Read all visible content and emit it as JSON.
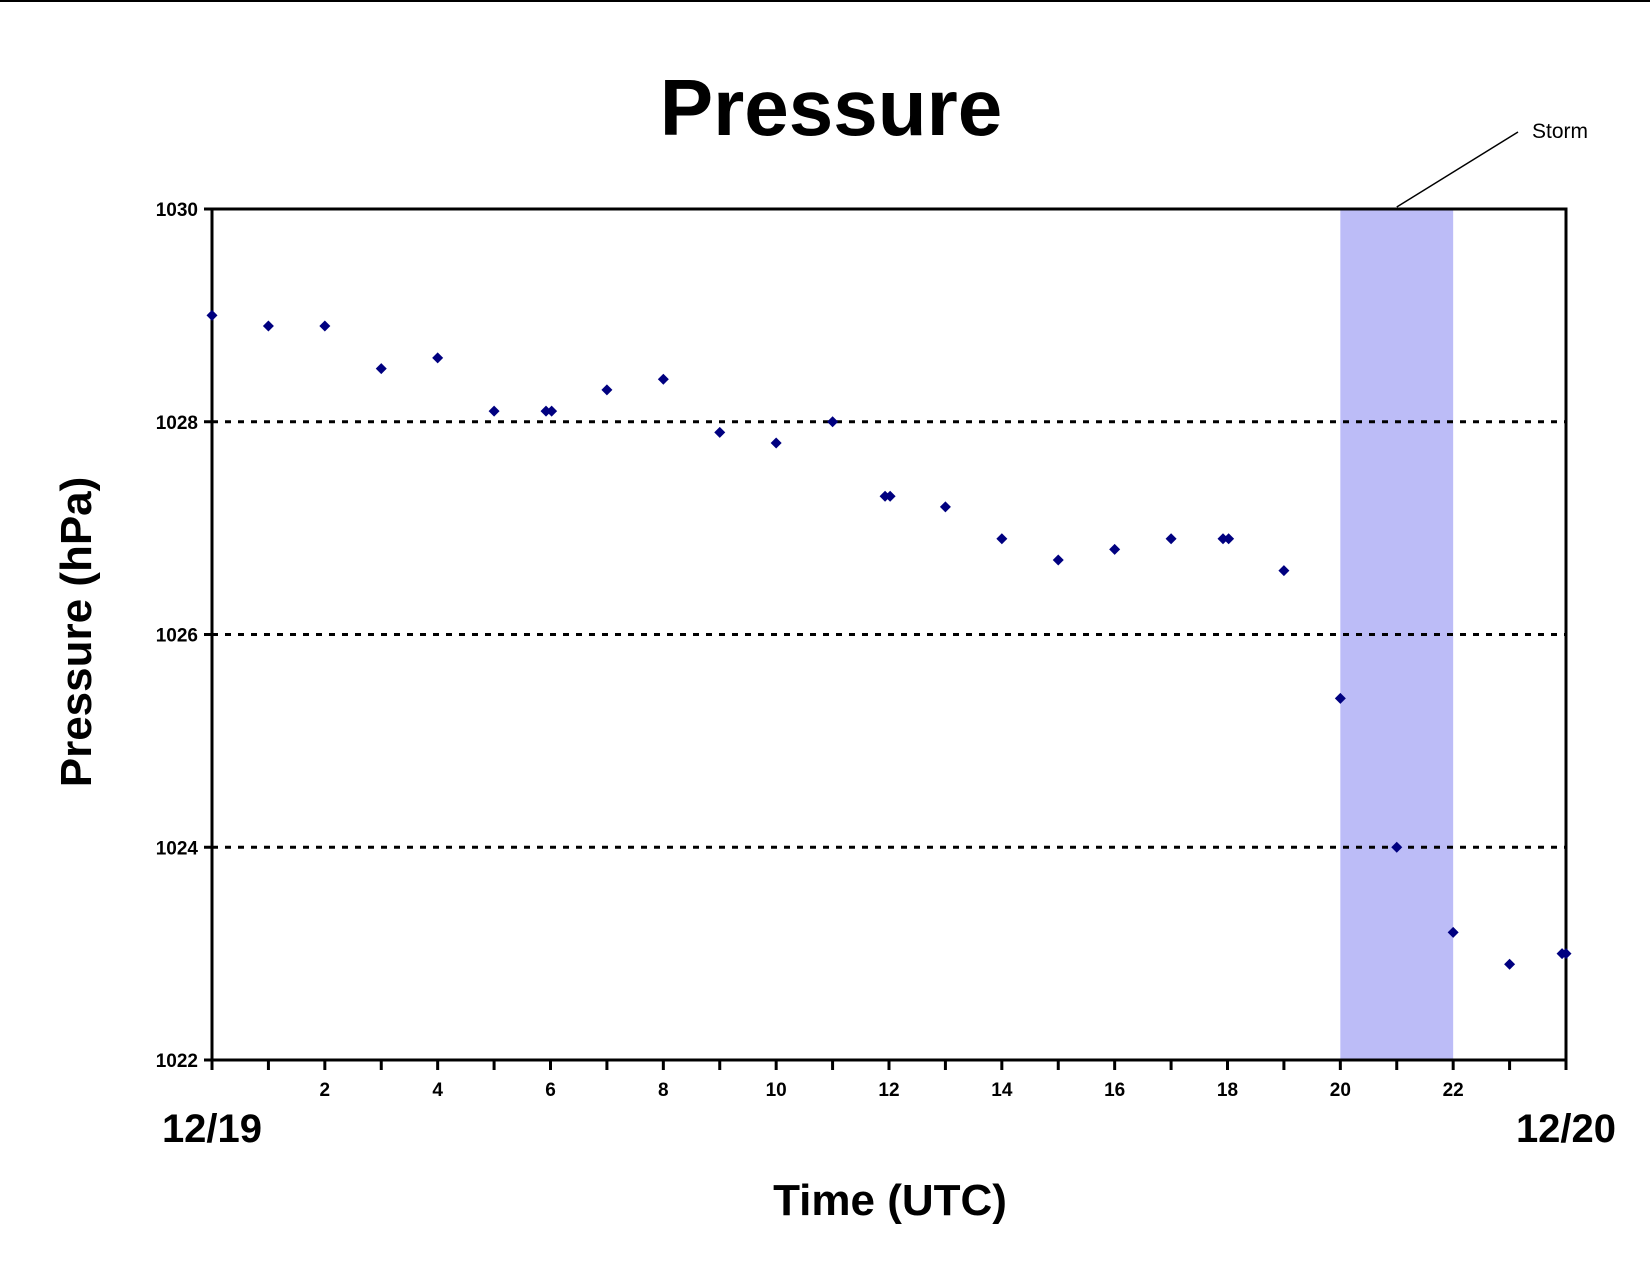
{
  "chart_data": {
    "type": "scatter",
    "title": "Pressure",
    "xlabel": "Time (UTC)",
    "ylabel": "Pressure (hPa)",
    "xlim": [
      0,
      24
    ],
    "ylim": [
      1022,
      1030
    ],
    "x_ticks": [
      2,
      4,
      6,
      8,
      10,
      12,
      14,
      16,
      18,
      20,
      22
    ],
    "y_ticks": [
      1022,
      1024,
      1026,
      1028,
      1030
    ],
    "grid": "horizontal dotted",
    "date_labels": {
      "start": "12/19",
      "end": "12/20"
    },
    "shaded_region": {
      "x_start": 20,
      "x_end": 22,
      "color": "#bcbcf7",
      "label": "Storm"
    },
    "marker_color": "#000080",
    "points": [
      {
        "x": 0,
        "y": 1029.0
      },
      {
        "x": 1,
        "y": 1028.9
      },
      {
        "x": 2,
        "y": 1028.9
      },
      {
        "x": 3,
        "y": 1028.5
      },
      {
        "x": 4,
        "y": 1028.6
      },
      {
        "x": 5,
        "y": 1028.1
      },
      {
        "x": 5.92,
        "y": 1028.1
      },
      {
        "x": 6.02,
        "y": 1028.1
      },
      {
        "x": 7,
        "y": 1028.3
      },
      {
        "x": 8,
        "y": 1028.4
      },
      {
        "x": 9,
        "y": 1027.9
      },
      {
        "x": 10,
        "y": 1027.8
      },
      {
        "x": 11,
        "y": 1028.0
      },
      {
        "x": 11.93,
        "y": 1027.3
      },
      {
        "x": 12.02,
        "y": 1027.3
      },
      {
        "x": 13,
        "y": 1027.2
      },
      {
        "x": 14,
        "y": 1026.9
      },
      {
        "x": 15,
        "y": 1026.7
      },
      {
        "x": 16,
        "y": 1026.8
      },
      {
        "x": 17,
        "y": 1026.9
      },
      {
        "x": 17.92,
        "y": 1026.9
      },
      {
        "x": 18.02,
        "y": 1026.9
      },
      {
        "x": 19,
        "y": 1026.6
      },
      {
        "x": 20,
        "y": 1025.4
      },
      {
        "x": 21,
        "y": 1024.0
      },
      {
        "x": 22,
        "y": 1023.2
      },
      {
        "x": 23,
        "y": 1022.9
      },
      {
        "x": 23.93,
        "y": 1023.0
      },
      {
        "x": 24,
        "y": 1023.0
      }
    ]
  }
}
